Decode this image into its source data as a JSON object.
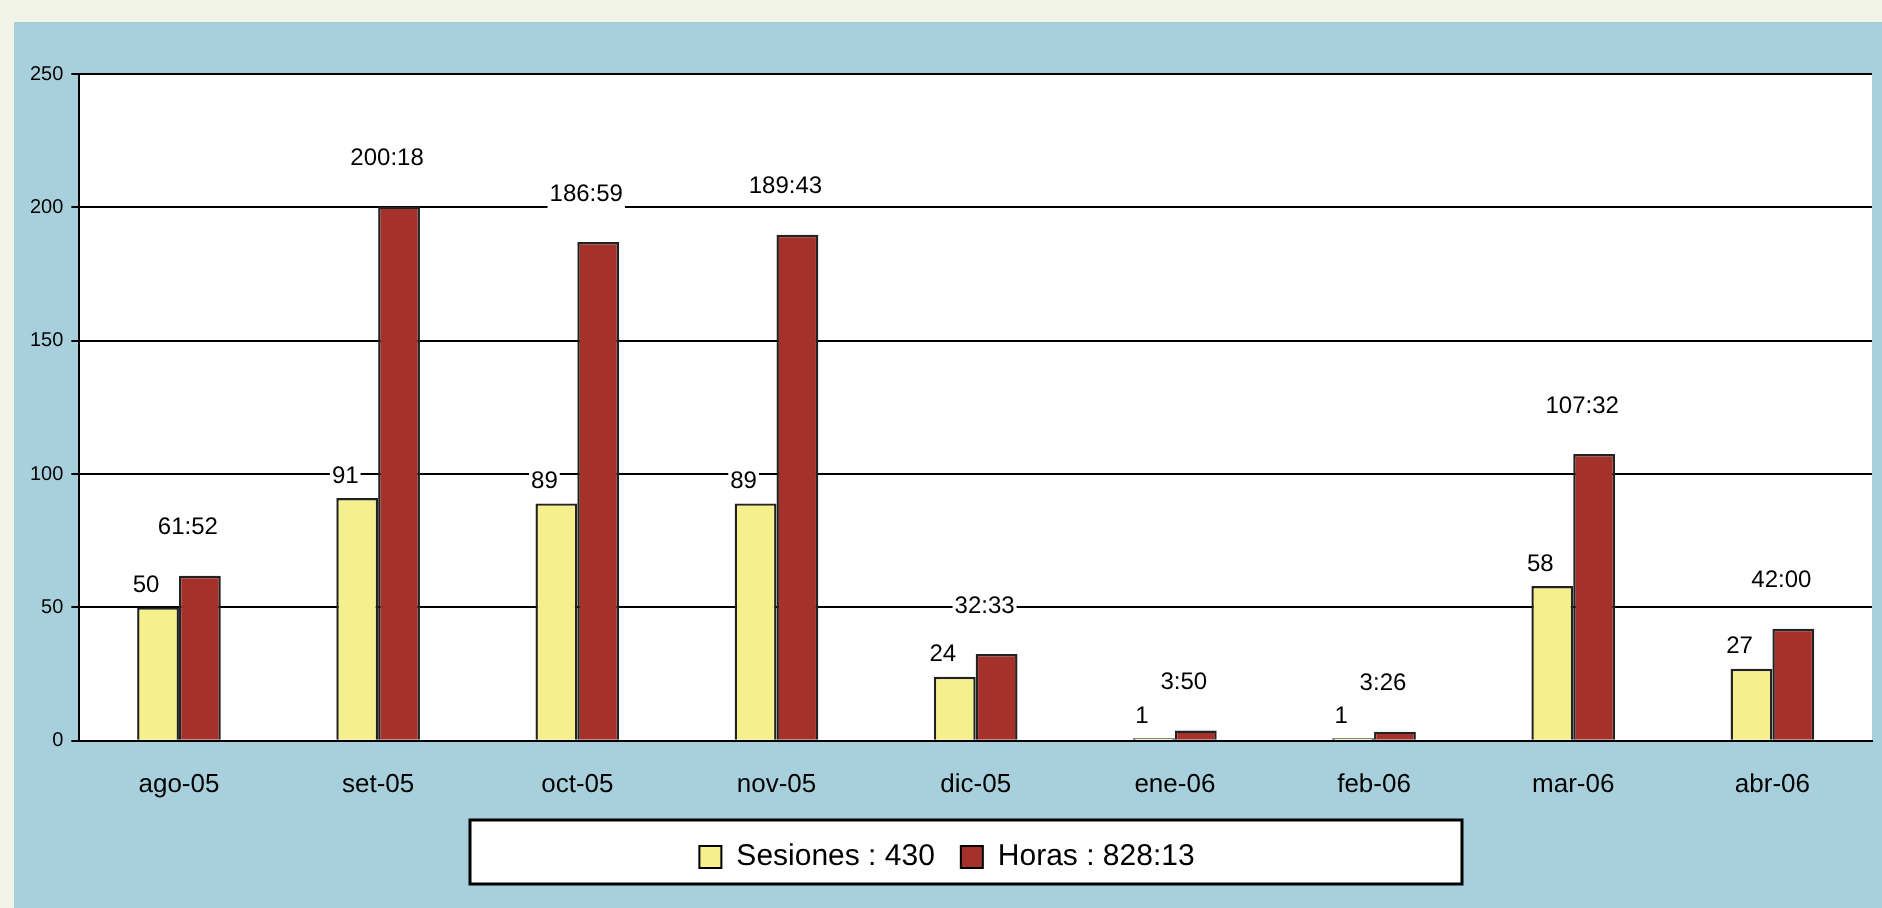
{
  "chart_data": {
    "type": "bar",
    "categories": [
      "ago-05",
      "set-05",
      "oct-05",
      "nov-05",
      "dic-05",
      "ene-06",
      "feb-06",
      "mar-06",
      "abr-06"
    ],
    "series": [
      {
        "name": "Sesiones : 430",
        "color": "#f5f08c",
        "values": [
          50,
          91,
          89,
          89,
          24,
          1,
          1,
          58,
          27
        ],
        "value_labels": [
          "50",
          "91",
          "89",
          "89",
          "24",
          "1",
          "1",
          "58",
          "27"
        ]
      },
      {
        "name": "Horas : 828:13",
        "color": "#a5322a",
        "values": [
          61.87,
          200.3,
          186.98,
          189.72,
          32.55,
          3.83,
          3.43,
          107.53,
          42
        ],
        "value_labels": [
          "61:52",
          "200:18",
          "186:59",
          "189:43",
          "32:33",
          "3:50",
          "3:26",
          "107:32",
          "42:00"
        ]
      }
    ],
    "ylim": [
      0,
      250
    ],
    "yticks": [
      0,
      50,
      100,
      150,
      200,
      250
    ],
    "grid": "y",
    "legend": "bottom"
  }
}
